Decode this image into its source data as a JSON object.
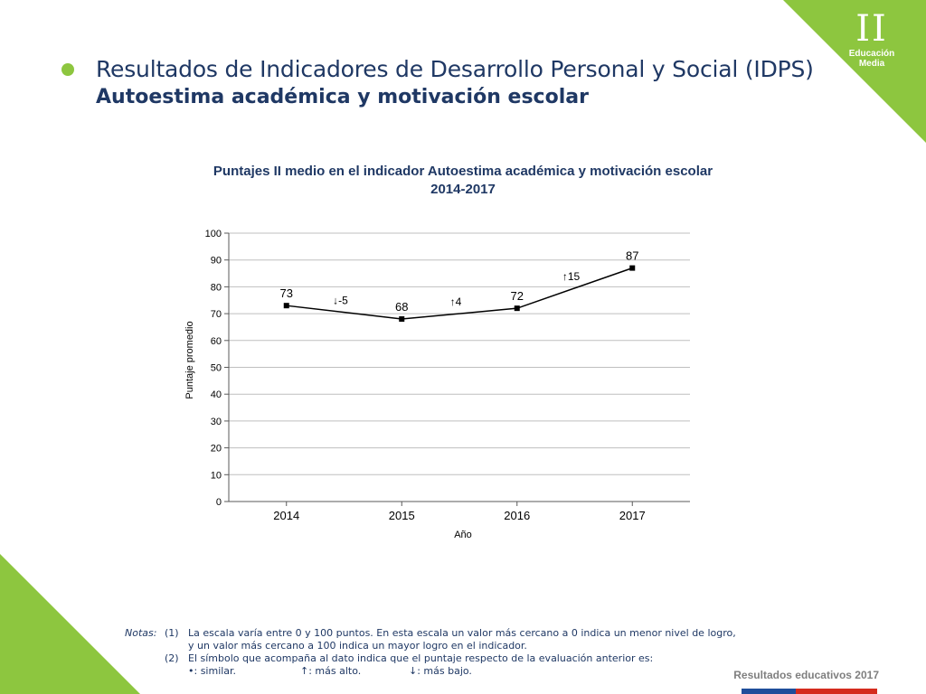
{
  "header": {
    "title_line1": "Resultados de Indicadores de Desarrollo Personal y Social (IDPS)",
    "title_line2": "Autoestima académica y motivación escolar"
  },
  "badge": {
    "roman": "II",
    "line1": "Educación",
    "line2": "Media"
  },
  "chart_data": {
    "type": "line",
    "title": "Puntajes II medio en el indicador Autoestima académica y motivación escolar",
    "subtitle": "2014-2017",
    "xlabel": "Año",
    "ylabel": "Puntaje promedio",
    "categories": [
      "2014",
      "2015",
      "2016",
      "2017"
    ],
    "values": [
      73,
      68,
      72,
      87
    ],
    "data_labels": [
      "73",
      "68",
      "72",
      "87"
    ],
    "change_labels": [
      "↓-5",
      "↑4",
      "↑15"
    ],
    "ylim": [
      0,
      100
    ],
    "yticks": [
      0,
      10,
      20,
      30,
      40,
      50,
      60,
      70,
      80,
      90,
      100
    ],
    "grid": true,
    "line_color": "#000000"
  },
  "notes": {
    "label": "Notas:",
    "n1_num": "(1)",
    "n1_line1": "La escala varía entre 0 y 100 puntos. En esta escala un valor más cercano a 0 indica un menor nivel de logro,",
    "n1_line2": "y un valor más cercano a 100 indica un mayor logro en el indicador.",
    "n2_num": "(2)",
    "n2_line1": "El símbolo que acompaña al dato indica que el puntaje respecto de la evaluación anterior es:",
    "sym_similar": "•: similar.",
    "sym_higher": "↑: más alto.",
    "sym_lower": "↓: más bajo."
  },
  "footer": {
    "text": "Resultados educativos 2017"
  },
  "colors": {
    "accent": "#8dc63f",
    "title": "#1f3864",
    "flag_blue": "#1f4e9b",
    "flag_red": "#d52b1e"
  }
}
